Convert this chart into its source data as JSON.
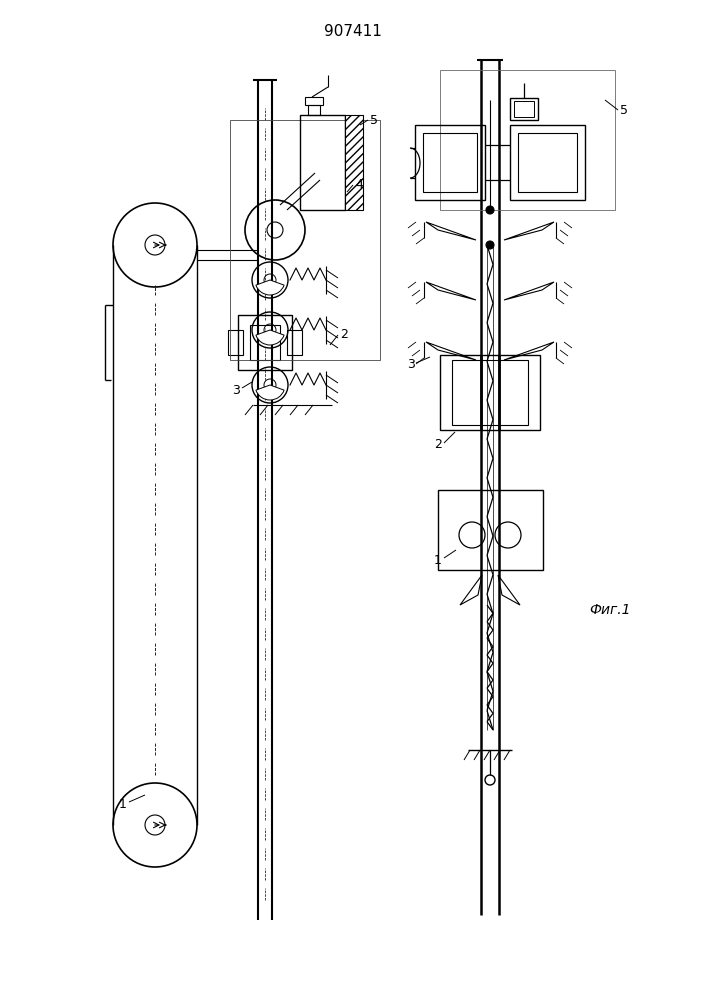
{
  "title": "907411",
  "fig_caption": "Фиг.1",
  "bg_color": "#ffffff",
  "line_color": "#000000"
}
